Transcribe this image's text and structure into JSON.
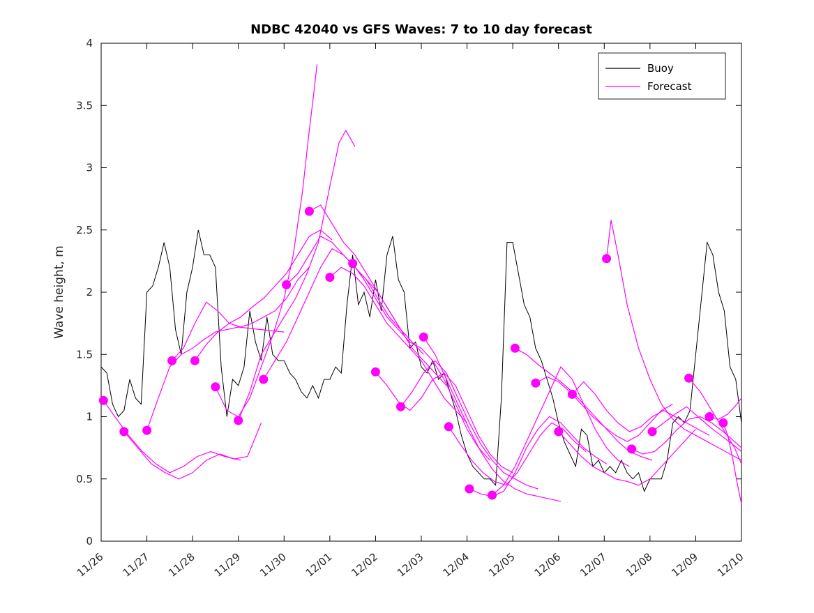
{
  "figure": {
    "background": "#ffffff"
  },
  "legend": {
    "buoy": "Buoy",
    "forecast": "Forecast"
  },
  "chart_data": {
    "type": "line",
    "title": "NDBC 42040 vs GFS Waves: 7 to 10 day forecast",
    "xlabel": "",
    "ylabel": "Wave height, m",
    "ylim": [
      0,
      4
    ],
    "x_range_days": [
      0,
      14
    ],
    "x_axis_note": "x measured in days since 11/26",
    "grid": false,
    "legend_position": "top-right",
    "yticks": {
      "values": [
        0,
        0.5,
        1,
        1.5,
        2,
        2.5,
        3,
        3.5,
        4
      ],
      "labels": [
        "0",
        "0.5",
        "1",
        "1.5",
        "2",
        "2.5",
        "3",
        "3.5",
        "4"
      ]
    },
    "xticks": {
      "positions_days": [
        0,
        1,
        2,
        3,
        4,
        5,
        6,
        7,
        8,
        9,
        10,
        11,
        12,
        13,
        14
      ],
      "labels": [
        "11/26",
        "11/27",
        "11/28",
        "11/29",
        "11/30",
        "12/01",
        "12/02",
        "12/03",
        "12/04",
        "12/05",
        "12/06",
        "12/07",
        "12/08",
        "12/09",
        "12/10"
      ],
      "rotation_deg": -40
    },
    "colors": {
      "buoy": "#000000",
      "forecast": "#ff00ff"
    },
    "buoy": {
      "name": "Buoy",
      "color": "#000000",
      "x_start": 0,
      "x_step": 0.125,
      "y": [
        1.4,
        1.35,
        1.1,
        1.0,
        1.05,
        1.3,
        1.15,
        1.1,
        2.0,
        2.05,
        2.2,
        2.4,
        2.2,
        1.7,
        1.5,
        2.0,
        2.2,
        2.5,
        2.3,
        2.3,
        2.2,
        1.4,
        1.0,
        1.3,
        1.25,
        1.4,
        1.85,
        1.6,
        1.45,
        1.8,
        1.5,
        1.45,
        1.45,
        1.35,
        1.3,
        1.2,
        1.15,
        1.25,
        1.15,
        1.3,
        1.3,
        1.4,
        1.35,
        1.9,
        2.3,
        1.9,
        2.0,
        1.8,
        2.1,
        1.85,
        2.3,
        2.45,
        2.1,
        2.0,
        1.55,
        1.6,
        1.4,
        1.35,
        1.45,
        1.3,
        1.35,
        1.2,
        1.05,
        0.85,
        0.7,
        0.6,
        0.55,
        0.5,
        0.5,
        0.45,
        1.15,
        2.4,
        2.4,
        2.15,
        1.9,
        1.8,
        1.55,
        1.45,
        1.3,
        1.15,
        0.95,
        0.8,
        0.7,
        0.6,
        0.9,
        0.85,
        0.6,
        0.65,
        0.55,
        0.6,
        0.55,
        0.65,
        0.55,
        0.5,
        0.55,
        0.4,
        0.5,
        0.5,
        0.5,
        0.65,
        0.95,
        1.0,
        0.95,
        1.05,
        1.5,
        1.95,
        2.4,
        2.3,
        2.0,
        1.85,
        1.4,
        1.3,
        0.95
      ]
    },
    "forecasts": {
      "name": "Forecast",
      "color": "#ff00ff",
      "marker_at_run_start": true,
      "runs": [
        {
          "x": [
            0.05,
            0.3,
            0.6,
            0.9,
            1.2,
            1.5,
            1.8,
            2.1,
            2.4,
            2.7,
            3.05
          ],
          "y": [
            1.13,
            1.0,
            0.85,
            0.72,
            0.62,
            0.55,
            0.6,
            0.68,
            0.72,
            0.68,
            0.65
          ]
        },
        {
          "x": [
            0.5,
            0.8,
            1.1,
            1.4,
            1.7,
            2.0,
            2.3,
            2.6,
            2.9,
            3.2,
            3.5
          ],
          "y": [
            0.88,
            0.75,
            0.62,
            0.55,
            0.5,
            0.55,
            0.65,
            0.7,
            0.66,
            0.68,
            0.95
          ]
        },
        {
          "x": [
            1.0,
            1.25,
            1.5,
            1.75,
            2.0,
            2.25,
            2.5,
            2.75,
            3.0,
            3.5,
            4.0
          ],
          "y": [
            0.89,
            1.15,
            1.4,
            1.5,
            1.55,
            1.62,
            1.68,
            1.7,
            1.72,
            1.7,
            1.68
          ]
        },
        {
          "x": [
            1.55,
            1.8,
            2.05,
            2.3,
            2.55,
            2.8,
            3.05,
            3.3,
            3.55,
            3.8,
            4.05,
            4.3,
            4.55
          ],
          "y": [
            1.45,
            1.55,
            1.75,
            1.92,
            1.85,
            1.75,
            1.72,
            1.75,
            1.8,
            1.85,
            1.95,
            2.1,
            2.2
          ]
        },
        {
          "x": [
            2.05,
            2.3,
            2.55,
            2.8,
            3.05,
            3.3,
            3.55,
            3.8,
            4.05,
            4.3,
            4.55,
            4.8,
            5.05
          ],
          "y": [
            1.45,
            1.58,
            1.68,
            1.75,
            1.8,
            1.88,
            1.95,
            2.05,
            2.15,
            2.3,
            2.45,
            2.5,
            2.42
          ]
        },
        {
          "x": [
            2.5,
            2.75,
            3.0,
            3.25,
            3.5,
            3.75,
            4.0,
            4.2,
            4.4,
            4.55,
            4.65,
            4.72
          ],
          "y": [
            1.24,
            1.05,
            1.0,
            1.15,
            1.4,
            1.65,
            1.95,
            2.3,
            2.8,
            3.3,
            3.6,
            3.83
          ]
        },
        {
          "x": [
            3.0,
            3.25,
            3.5,
            3.75,
            4.0,
            4.25,
            4.5,
            4.75,
            5.0,
            5.2,
            5.35,
            5.55
          ],
          "y": [
            0.97,
            1.2,
            1.5,
            1.65,
            1.8,
            1.95,
            2.15,
            2.4,
            2.85,
            3.2,
            3.3,
            3.17
          ]
        },
        {
          "x": [
            3.55,
            3.8,
            4.05,
            4.3,
            4.55,
            4.8,
            5.05,
            5.3,
            5.55,
            5.8,
            6.05,
            6.3,
            6.55
          ],
          "y": [
            1.3,
            1.45,
            1.6,
            1.8,
            2.0,
            2.2,
            2.35,
            2.3,
            2.2,
            2.1,
            1.95,
            1.8,
            1.7
          ]
        },
        {
          "x": [
            4.05,
            4.3,
            4.55,
            4.8,
            5.05,
            5.3,
            5.55,
            5.8,
            6.05,
            6.3,
            6.55,
            6.8,
            7.05
          ],
          "y": [
            2.06,
            2.15,
            2.3,
            2.45,
            2.4,
            2.3,
            2.2,
            2.1,
            2.0,
            1.85,
            1.7,
            1.6,
            1.5
          ]
        },
        {
          "x": [
            4.55,
            4.8,
            5.05,
            5.3,
            5.55,
            5.8,
            6.05,
            6.3,
            6.55,
            6.8,
            7.05,
            7.3,
            7.55
          ],
          "y": [
            2.65,
            2.7,
            2.55,
            2.4,
            2.3,
            2.15,
            2.0,
            1.85,
            1.7,
            1.55,
            1.45,
            1.35,
            1.25
          ]
        },
        {
          "x": [
            5.0,
            5.25,
            5.5,
            5.75,
            6.0,
            6.25,
            6.5,
            6.75,
            7.0,
            7.25,
            7.5,
            7.75,
            8.0
          ],
          "y": [
            2.12,
            2.2,
            2.15,
            2.05,
            1.9,
            1.75,
            1.65,
            1.55,
            1.45,
            1.3,
            1.15,
            1.05,
            0.95
          ]
        },
        {
          "x": [
            5.5,
            5.75,
            6.0,
            6.25,
            6.5,
            6.75,
            7.0,
            7.25,
            7.5,
            7.75,
            8.0,
            8.25,
            8.5
          ],
          "y": [
            2.23,
            2.1,
            1.95,
            1.8,
            1.7,
            1.6,
            1.55,
            1.45,
            1.3,
            1.1,
            0.9,
            0.75,
            0.65
          ]
        },
        {
          "x": [
            6.0,
            6.25,
            6.5,
            6.75,
            7.0,
            7.25,
            7.5,
            7.75,
            8.0,
            8.25,
            8.5,
            8.75,
            9.0
          ],
          "y": [
            1.36,
            1.25,
            1.12,
            1.05,
            1.15,
            1.3,
            1.35,
            1.25,
            1.05,
            0.85,
            0.7,
            0.6,
            0.55
          ]
        },
        {
          "x": [
            6.55,
            6.8,
            7.05,
            7.3,
            7.55,
            7.8,
            8.05,
            8.3,
            8.55,
            8.8,
            9.05,
            9.3,
            9.55
          ],
          "y": [
            1.08,
            1.2,
            1.35,
            1.45,
            1.35,
            1.15,
            0.95,
            0.78,
            0.65,
            0.55,
            0.5,
            0.45,
            0.42
          ]
        },
        {
          "x": [
            7.05,
            7.3,
            7.55,
            7.8,
            8.05,
            8.3,
            8.55,
            8.8,
            9.05,
            9.3,
            9.55,
            9.8,
            10.05
          ],
          "y": [
            1.64,
            1.5,
            1.3,
            1.1,
            0.9,
            0.72,
            0.58,
            0.48,
            0.42,
            0.38,
            0.36,
            0.34,
            0.32
          ]
        },
        {
          "x": [
            7.6,
            7.85,
            8.1,
            8.35,
            8.6,
            8.85,
            9.1,
            9.35,
            9.6,
            9.85,
            10.1,
            10.35,
            10.6
          ],
          "y": [
            0.92,
            0.78,
            0.65,
            0.55,
            0.48,
            0.45,
            0.55,
            0.7,
            0.85,
            0.95,
            0.9,
            0.8,
            0.72
          ]
        },
        {
          "x": [
            8.05,
            8.3,
            8.55,
            8.8,
            9.05,
            9.3,
            9.55,
            9.8,
            10.05,
            10.3,
            10.55,
            10.8,
            11.05
          ],
          "y": [
            0.42,
            0.38,
            0.36,
            0.4,
            0.55,
            0.75,
            0.9,
            1.0,
            0.95,
            0.85,
            0.75,
            0.68,
            0.62
          ]
        },
        {
          "x": [
            8.55,
            8.8,
            9.05,
            9.3,
            9.55,
            9.8,
            10.05,
            10.3,
            10.55,
            10.8,
            11.05,
            11.3,
            11.55
          ],
          "y": [
            0.37,
            0.45,
            0.6,
            0.8,
            1.0,
            1.2,
            1.4,
            1.3,
            1.1,
            0.9,
            0.75,
            0.65,
            0.6
          ]
        },
        {
          "x": [
            9.05,
            9.3,
            9.55,
            9.8,
            10.05,
            10.3,
            10.55,
            10.8,
            11.05,
            11.3,
            11.55,
            11.8,
            12.05
          ],
          "y": [
            1.55,
            1.5,
            1.42,
            1.35,
            1.28,
            1.2,
            1.1,
            1.0,
            0.9,
            0.8,
            0.72,
            0.68,
            0.65
          ]
        },
        {
          "x": [
            9.5,
            9.75,
            10.0,
            10.25,
            10.5,
            10.75,
            11.0,
            11.25,
            11.5,
            11.75,
            12.0,
            12.25,
            12.5
          ],
          "y": [
            1.27,
            1.32,
            1.28,
            1.2,
            1.1,
            1.0,
            0.92,
            0.85,
            0.8,
            0.85,
            0.95,
            1.05,
            1.1
          ]
        },
        {
          "x": [
            10.0,
            10.25,
            10.5,
            10.75,
            11.0,
            11.25,
            11.5,
            11.75,
            12.0,
            12.25,
            12.5,
            12.75,
            13.0
          ],
          "y": [
            0.88,
            0.78,
            0.68,
            0.6,
            0.55,
            0.5,
            0.48,
            0.45,
            0.5,
            0.6,
            0.7,
            0.8,
            0.9
          ]
        },
        {
          "x": [
            10.3,
            10.55,
            10.8,
            11.05,
            11.3,
            11.55,
            11.8,
            12.05,
            12.3,
            12.55,
            12.8,
            13.05,
            13.3
          ],
          "y": [
            1.18,
            1.28,
            1.18,
            1.05,
            0.95,
            0.88,
            0.92,
            1.0,
            1.05,
            1.0,
            0.95,
            0.9,
            0.85
          ]
        },
        {
          "x": [
            11.05,
            11.15,
            11.3,
            11.5,
            11.75,
            12.0,
            12.25,
            12.5,
            12.75,
            13.0,
            13.25,
            13.5,
            14.0
          ],
          "y": [
            2.27,
            2.58,
            2.3,
            1.9,
            1.55,
            1.3,
            1.1,
            0.98,
            0.9,
            0.85,
            0.8,
            0.75,
            0.65
          ]
        },
        {
          "x": [
            11.6,
            11.85,
            12.1,
            12.35,
            12.6,
            12.85,
            13.1,
            13.35,
            13.6,
            13.85,
            14.0
          ],
          "y": [
            0.74,
            0.7,
            0.72,
            0.8,
            0.9,
            0.98,
            1.0,
            0.95,
            0.88,
            0.8,
            0.75
          ]
        },
        {
          "x": [
            12.05,
            12.3,
            12.55,
            12.8,
            13.05,
            13.3,
            13.55,
            13.8,
            14.0
          ],
          "y": [
            0.88,
            0.95,
            1.02,
            1.08,
            1.0,
            0.92,
            0.85,
            0.78,
            0.72
          ]
        },
        {
          "x": [
            12.85,
            13.1,
            13.35,
            13.6,
            13.85,
            14.0
          ],
          "y": [
            1.31,
            1.2,
            1.05,
            0.9,
            0.75,
            0.62
          ]
        },
        {
          "x": [
            13.3,
            13.5,
            13.7,
            13.9,
            14.0
          ],
          "y": [
            1.0,
            0.98,
            1.02,
            1.1,
            1.15
          ]
        },
        {
          "x": [
            13.6,
            13.7,
            13.8,
            13.9,
            14.0
          ],
          "y": [
            0.95,
            0.85,
            0.68,
            0.48,
            0.3
          ]
        }
      ]
    }
  }
}
